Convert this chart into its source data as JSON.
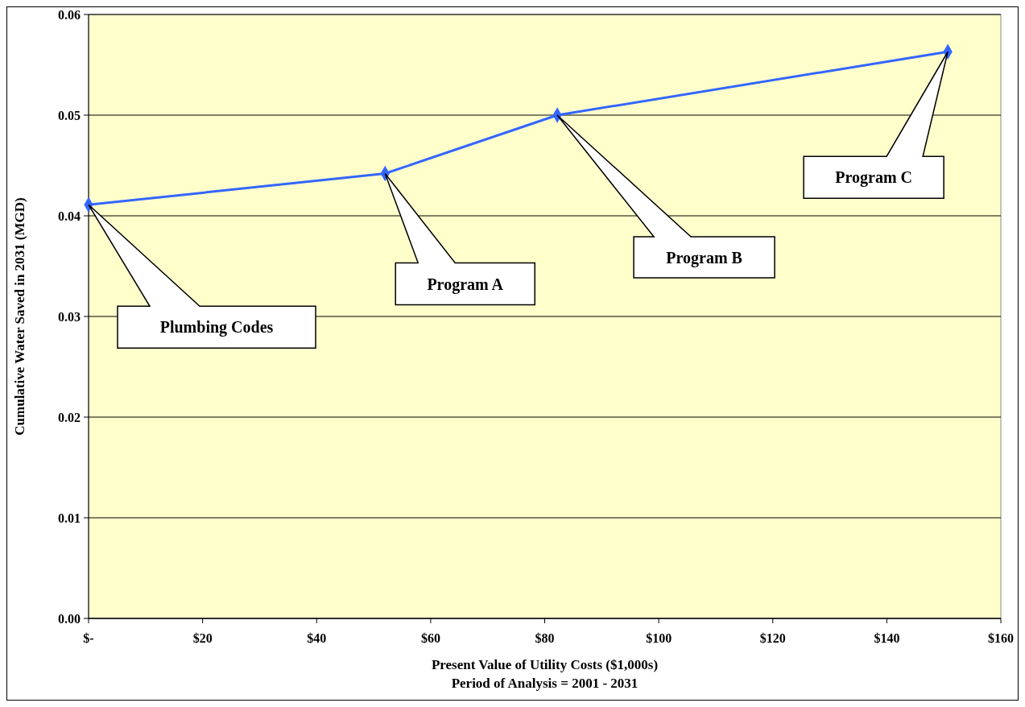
{
  "chart_data": {
    "type": "line",
    "xlabel": "Present Value of Utility Costs ($1,000s)\nPeriod of Analysis = 2001 - 2031",
    "ylabel": "Cumulative Water Saved in 2031 (MGD)",
    "x": [
      0,
      52,
      82.2,
      150.7
    ],
    "series": [
      {
        "color": "#3366ff",
        "values": [
          0.0411,
          0.0442,
          0.05,
          0.0563
        ]
      }
    ],
    "xlim": [
      0,
      160
    ],
    "xticks": [
      {
        "value": 0,
        "label": "$-"
      },
      {
        "value": 20,
        "label": "$20"
      },
      {
        "value": 40,
        "label": "$40"
      },
      {
        "value": 60,
        "label": "$60"
      },
      {
        "value": 80,
        "label": "$80"
      },
      {
        "value": 100,
        "label": "$100"
      },
      {
        "value": 120,
        "label": "$120"
      },
      {
        "value": 140,
        "label": "$140"
      },
      {
        "value": 160,
        "label": "$160"
      }
    ],
    "ylim": [
      0,
      0.06
    ],
    "yticks": [
      {
        "value": 0,
        "label": "0.00"
      },
      0.01,
      0.02,
      0.03,
      0.04,
      0.05,
      0.06
    ],
    "grid": "y",
    "marker": "diamond",
    "line_style": "solid",
    "annotations": [
      "Plumbing Codes",
      "Program A",
      "Program B",
      "Program C"
    ]
  }
}
